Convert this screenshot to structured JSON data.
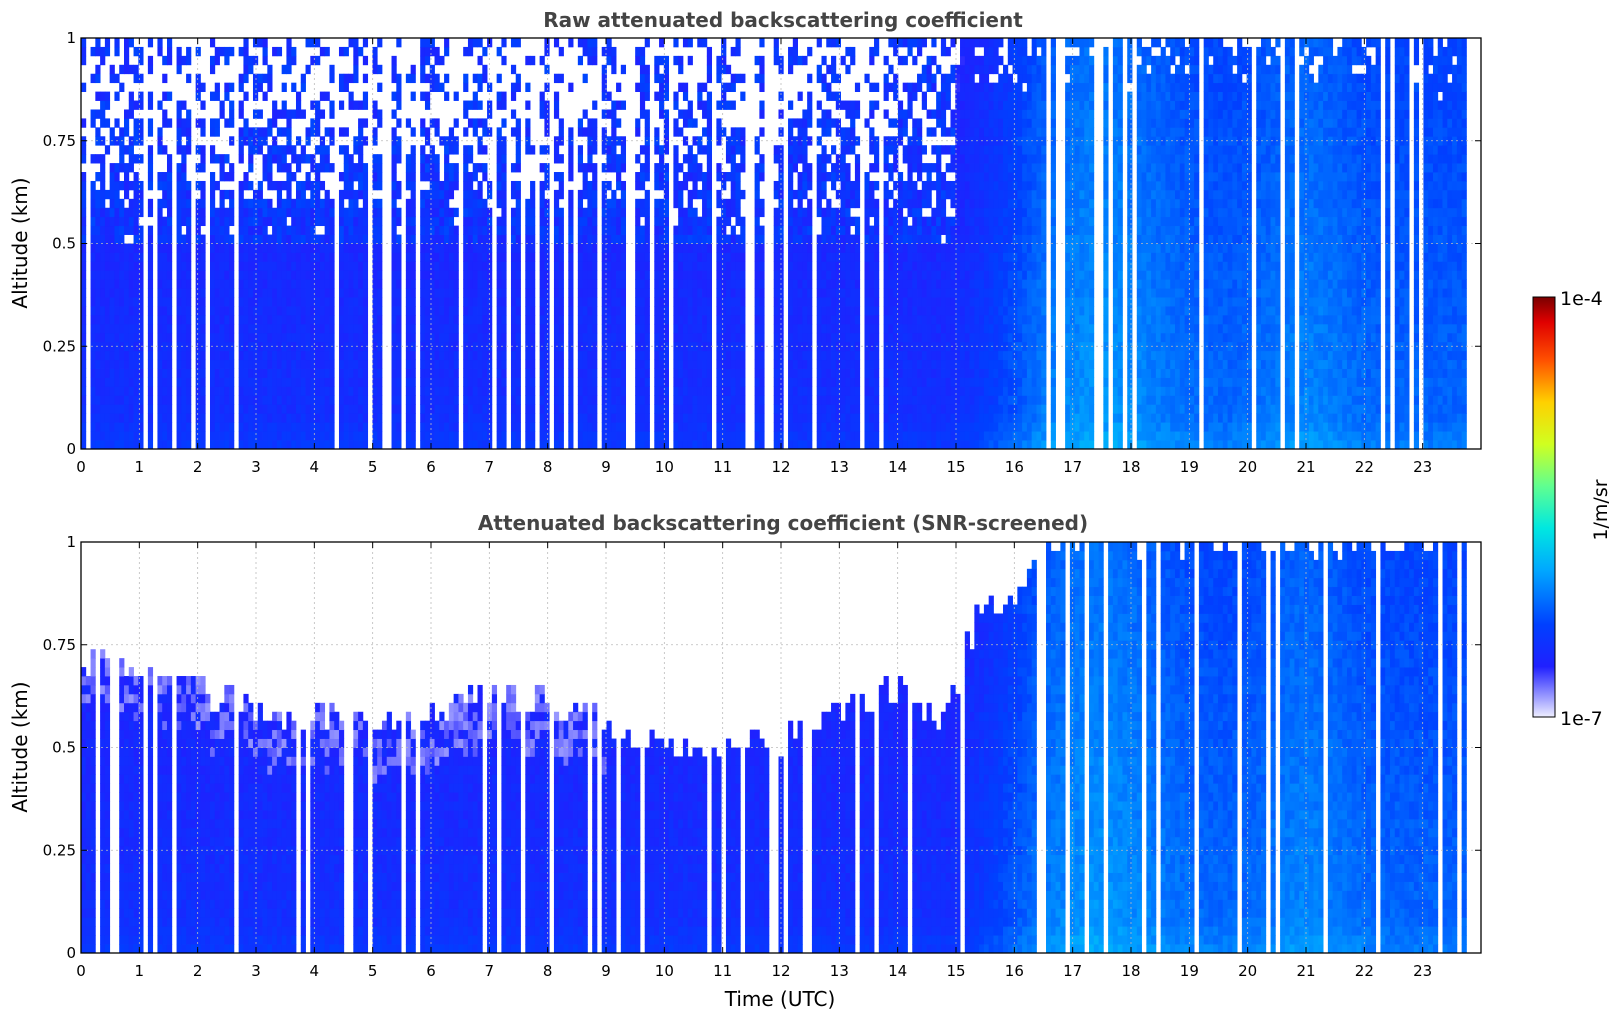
{
  "chart_data": [
    {
      "type": "heatmap",
      "title": "Raw attenuated backscattering coefficient",
      "xlabel": "",
      "ylabel": "Altitude (km)",
      "xlim": [
        0,
        24
      ],
      "ylim": [
        0,
        1
      ],
      "x_ticks": [
        "0",
        "1",
        "2",
        "3",
        "4",
        "5",
        "6",
        "7",
        "8",
        "9",
        "10",
        "11",
        "12",
        "13",
        "14",
        "15",
        "16",
        "17",
        "18",
        "19",
        "20",
        "21",
        "22",
        "23"
      ],
      "y_ticks": [
        "0",
        "0.25",
        "0.5",
        "0.75",
        "1"
      ],
      "data_end_time": 23.75,
      "grid": true,
      "description_of_field": {
        "low_altitude_value_0_to_15h": "1e-6",
        "low_altitude_value_16_to_23h": "8e-6",
        "noise_onset_altitude_km_before_15h": 0.5,
        "peak_time_utc": 17.5
      }
    },
    {
      "type": "heatmap",
      "title": "Attenuated backscattering coefficient (SNR-screened)",
      "xlabel": "Time (UTC)",
      "ylabel": "Altitude (km)",
      "xlim": [
        0,
        24
      ],
      "ylim": [
        0,
        1
      ],
      "x_ticks": [
        "0",
        "1",
        "2",
        "3",
        "4",
        "5",
        "6",
        "7",
        "8",
        "9",
        "10",
        "11",
        "12",
        "13",
        "14",
        "15",
        "16",
        "17",
        "18",
        "19",
        "20",
        "21",
        "22",
        "23"
      ],
      "y_ticks": [
        "0",
        "0.25",
        "0.5",
        "0.75",
        "1"
      ],
      "data_end_time": 23.75,
      "grid": true,
      "screened_top_km": [
        {
          "t": 0,
          "z": 0.72
        },
        {
          "t": 1,
          "z": 0.68
        },
        {
          "t": 2,
          "z": 0.64
        },
        {
          "t": 3,
          "z": 0.6
        },
        {
          "t": 4,
          "z": 0.58
        },
        {
          "t": 5,
          "z": 0.57
        },
        {
          "t": 6,
          "z": 0.58
        },
        {
          "t": 7,
          "z": 0.62
        },
        {
          "t": 8,
          "z": 0.62
        },
        {
          "t": 9,
          "z": 0.55
        },
        {
          "t": 10,
          "z": 0.5
        },
        {
          "t": 11,
          "z": 0.5
        },
        {
          "t": 12,
          "z": 0.52
        },
        {
          "t": 13,
          "z": 0.58
        },
        {
          "t": 14,
          "z": 0.64
        },
        {
          "t": 14.8,
          "z": 0.55
        },
        {
          "t": 15.3,
          "z": 0.8
        },
        {
          "t": 16,
          "z": 0.88
        },
        {
          "t": 16.5,
          "z": 1.0
        },
        {
          "t": 23.75,
          "z": 1.0
        }
      ]
    }
  ],
  "colorbar": {
    "label": "1/m/sr",
    "max_label": "1e-4",
    "min_label": "1e-7",
    "scale": "log",
    "colormap": "jet"
  }
}
